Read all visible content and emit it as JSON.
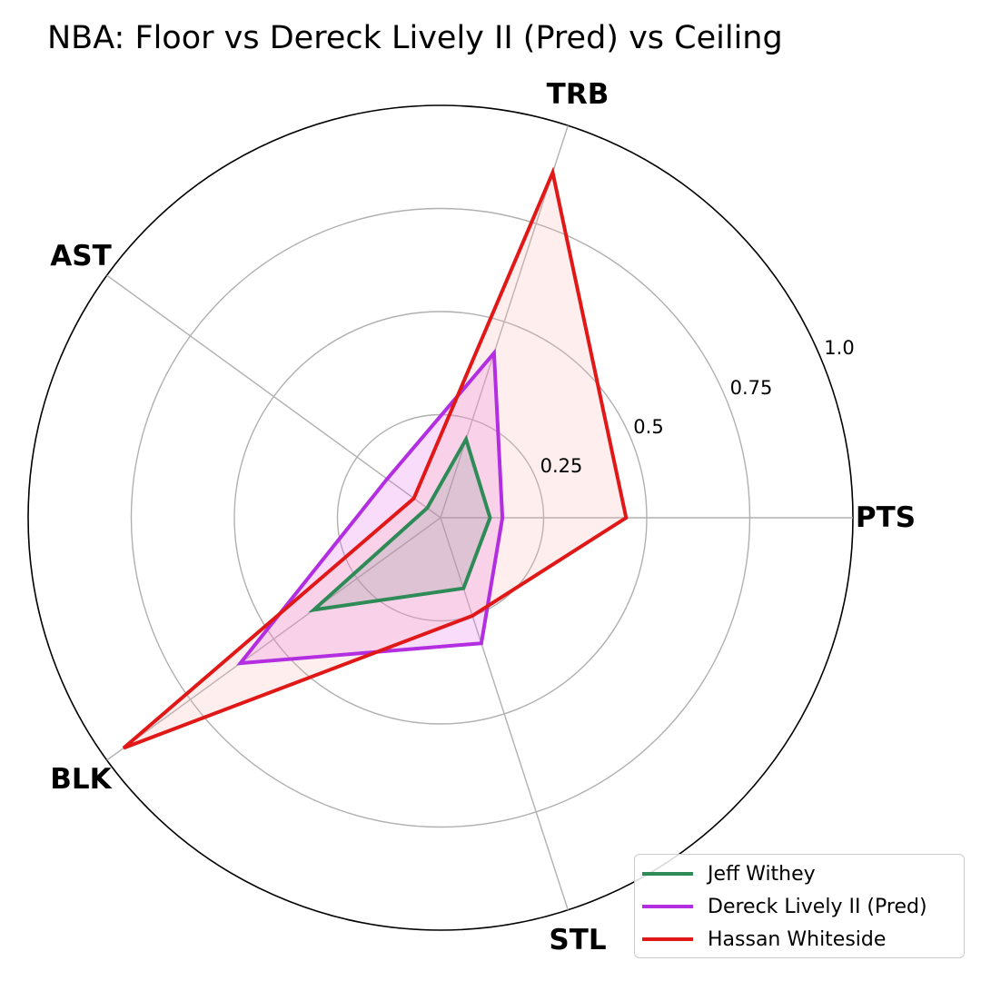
{
  "chart_data": {
    "type": "radar",
    "title": "NBA: Floor vs Dereck Lively II (Pred) vs Ceiling",
    "axes": [
      "PTS",
      "TRB",
      "AST",
      "BLK",
      "STL"
    ],
    "rlim": [
      0,
      1.0
    ],
    "rticks": [
      0.25,
      0.5,
      0.75,
      1.0
    ],
    "rtick_labels": [
      "0.25",
      "0.5",
      "0.75",
      "1.0"
    ],
    "grid": true,
    "legend_position": "bottom-right",
    "series": [
      {
        "name": "Jeff Withey",
        "color": "#2e8b57",
        "fill": "#2e8b57",
        "values": [
          0.12,
          0.2,
          0.04,
          0.38,
          0.18
        ]
      },
      {
        "name": "Dereck Lively II (Pred)",
        "color": "#b22ee0",
        "fill": "#e060e8",
        "values": [
          0.15,
          0.42,
          0.16,
          0.6,
          0.32
        ]
      },
      {
        "name": "Hassan Whiteside",
        "color": "#e01818",
        "fill": "#ffb0b0",
        "values": [
          0.45,
          0.88,
          0.08,
          0.95,
          0.25
        ]
      }
    ]
  }
}
